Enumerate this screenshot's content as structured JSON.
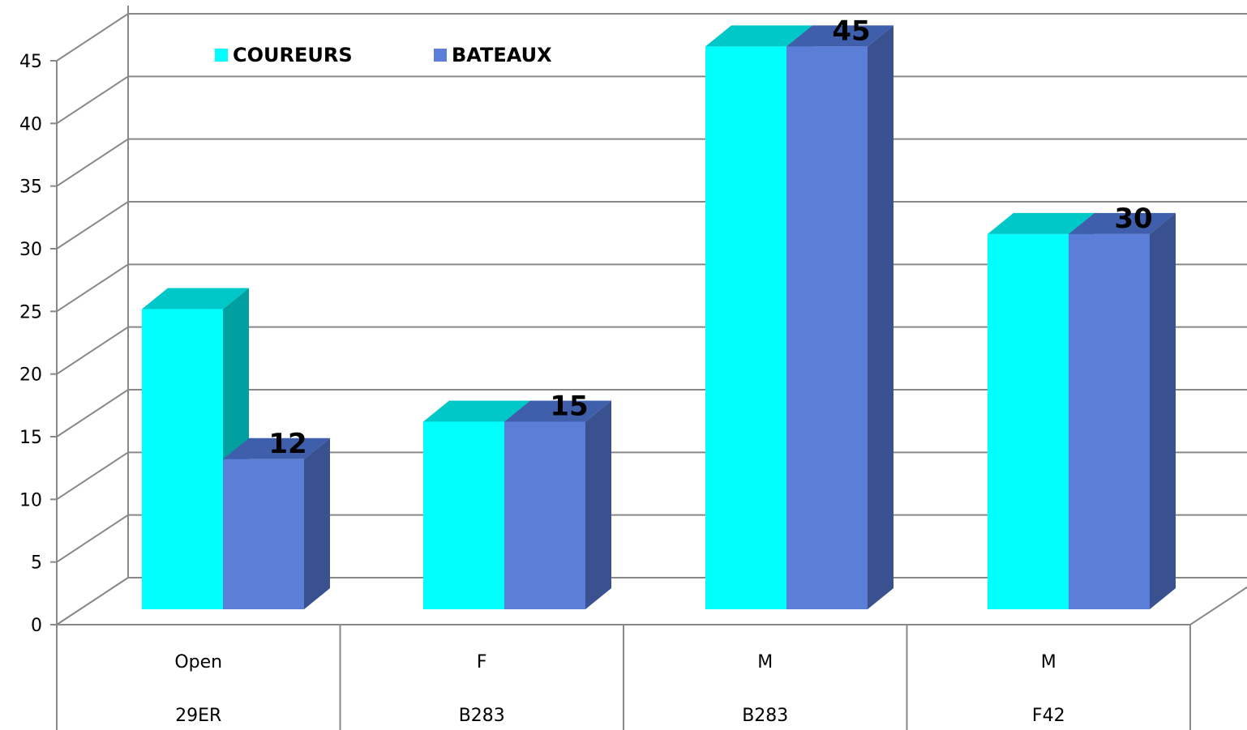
{
  "chart_data": {
    "type": "bar",
    "title": "",
    "xlabel": "",
    "ylabel": "",
    "ylim": [
      0,
      45
    ],
    "yticks": [
      0,
      5,
      10,
      15,
      20,
      25,
      30,
      35,
      40,
      45
    ],
    "grid": true,
    "legend_position": "top-left",
    "categories": [
      {
        "line1": "Open",
        "line2": "29ER"
      },
      {
        "line1": "F",
        "line2": "B283"
      },
      {
        "line1": "M",
        "line2": "B283"
      },
      {
        "line1": "M",
        "line2": "F42"
      }
    ],
    "series": [
      {
        "name": "COUREURS",
        "values": [
          24,
          15,
          45,
          30
        ],
        "color": "#00ffff",
        "color_top": "#00c8c8",
        "color_side": "#00a0a0",
        "show_labels": false
      },
      {
        "name": "BATEAUX",
        "values": [
          12,
          15,
          45,
          30
        ],
        "color": "#5b7fd8",
        "color_top": "#3f5fad",
        "color_side": "#3a5190",
        "show_labels": true
      }
    ],
    "data_labels": [
      "12",
      "15",
      "45",
      "30"
    ]
  }
}
